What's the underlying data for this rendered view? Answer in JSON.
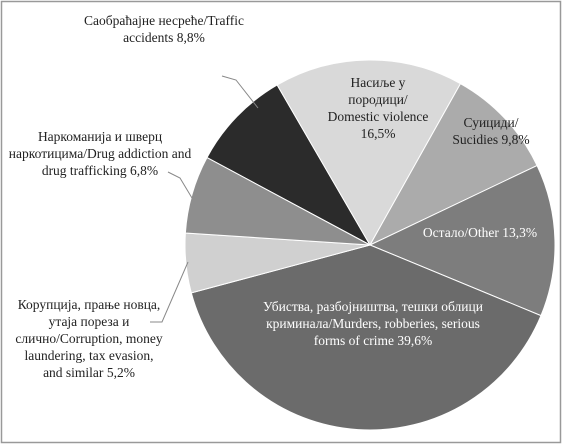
{
  "chart_data": {
    "type": "pie",
    "categories": [
      "Саобраћајне несреће/Traffic accidents",
      "Насиље у породици/ Domestic violence",
      "Суициди/ Sucidies",
      "Остало/Other",
      "Убиства, разбојништва, тешки облици криминала/Murders, robberies, serious forms of crime",
      "Корупција, прање новца, утаја пореза и слично/Corruption, money laundering, tax evasion, and similar",
      "Наркоманија и шверц наркотицима/Drug addiction and drug trafficking"
    ],
    "values": [
      8.8,
      16.5,
      9.8,
      13.3,
      39.6,
      5.2,
      6.8
    ],
    "value_labels": [
      "8,8%",
      "16,5%",
      "9,8%",
      "13,3%",
      "39,6%",
      "5,2%",
      "6,8%"
    ],
    "colors": [
      "#2b2b2b",
      "#d9d9d9",
      "#ababab",
      "#7d7d7d",
      "#6b6b6b",
      "#d0d0d0",
      "#8e8e8e"
    ]
  }
}
